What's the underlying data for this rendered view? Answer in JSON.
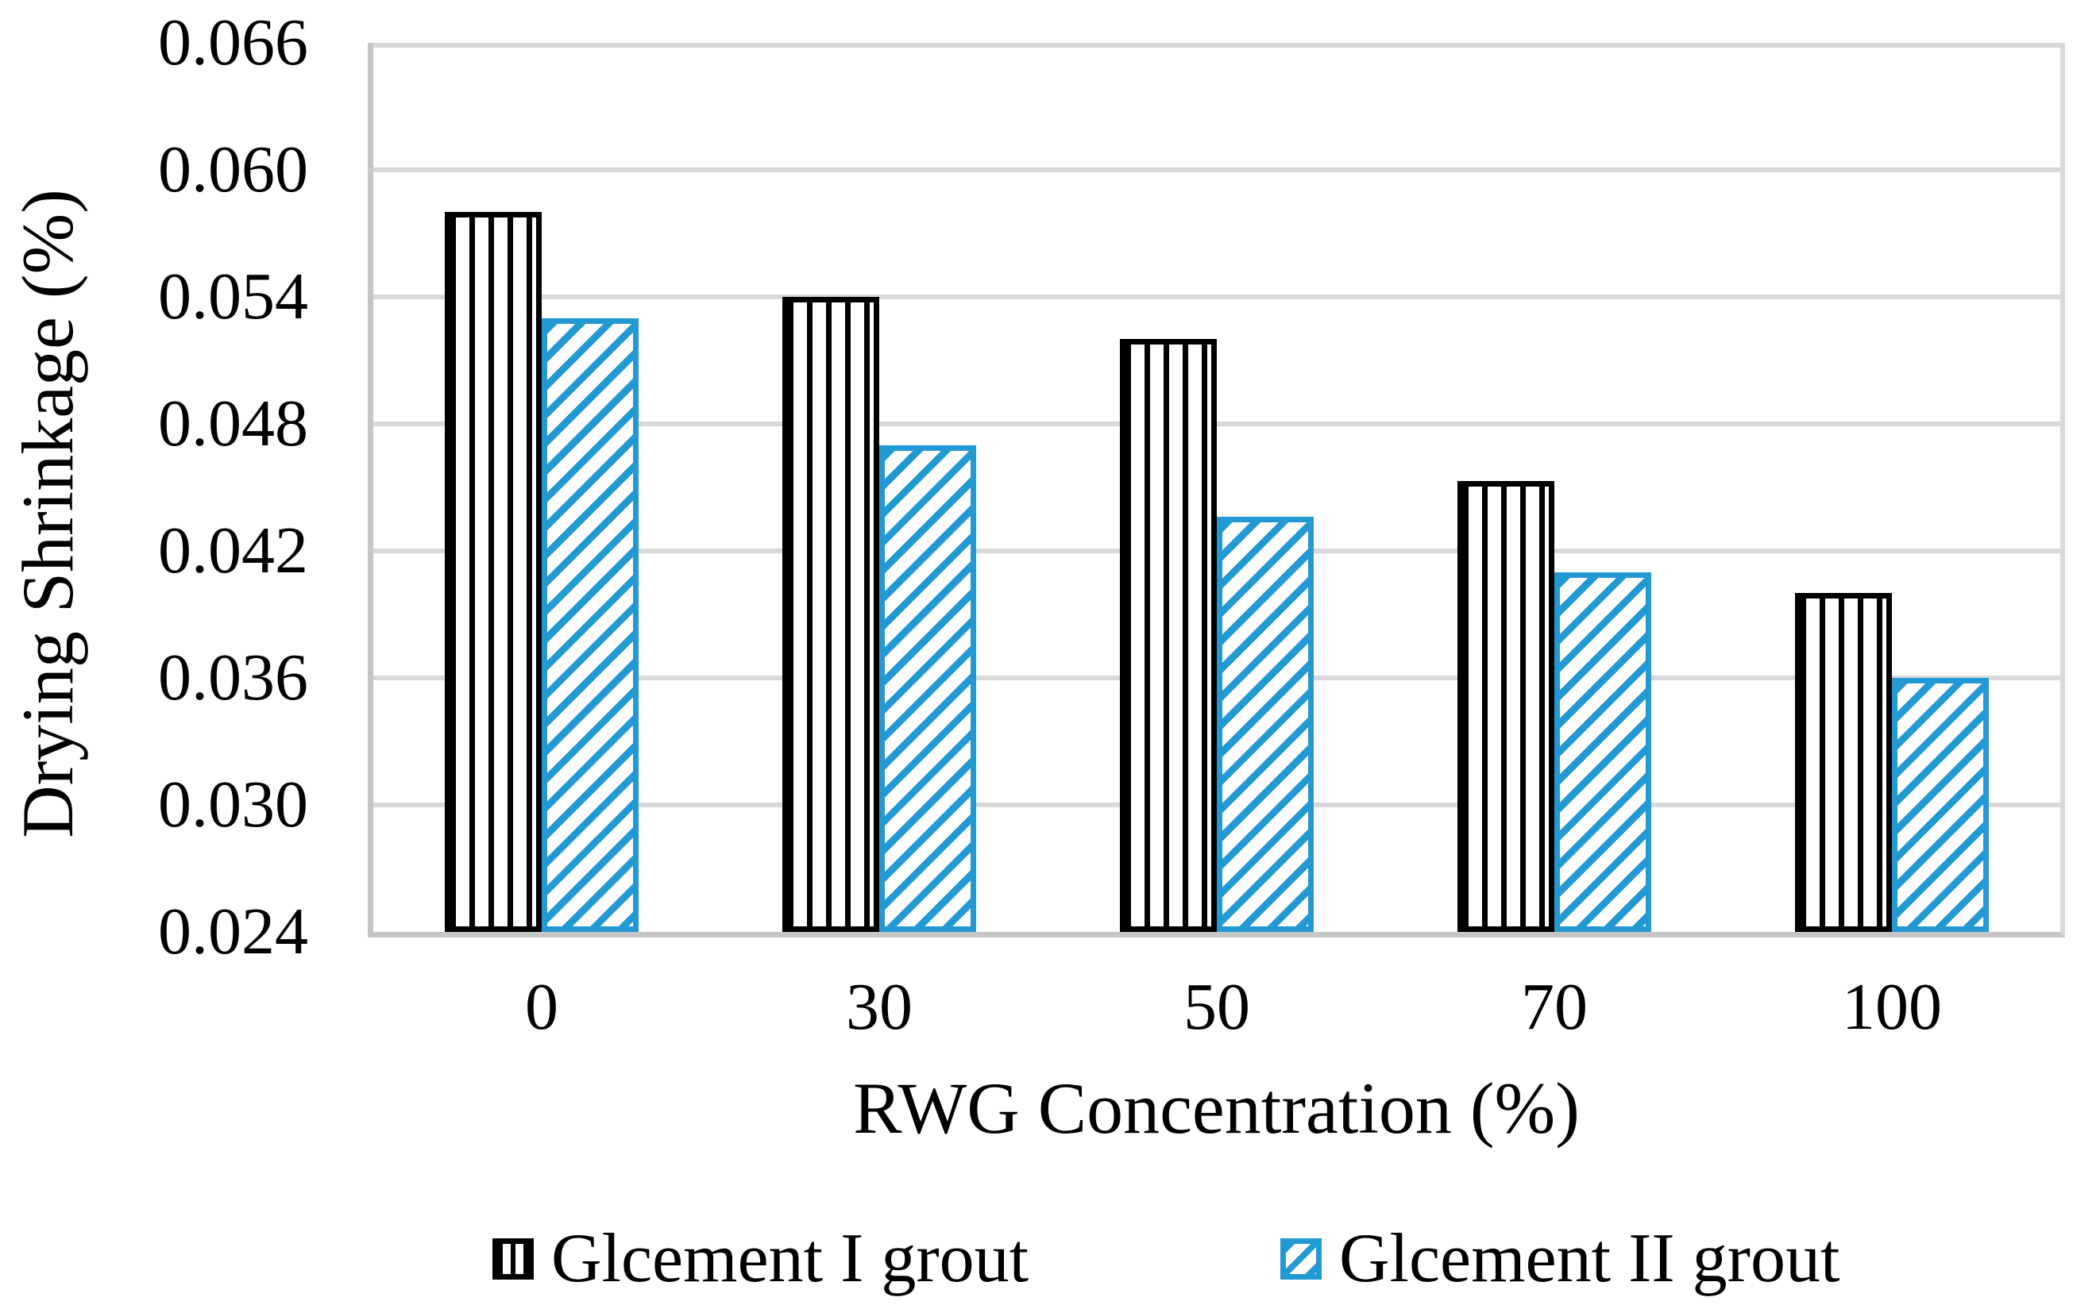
{
  "chart_data": {
    "type": "bar",
    "title": "",
    "categories": [
      "0",
      "30",
      "50",
      "70",
      "100"
    ],
    "series": [
      {
        "name": "Glcement I grout",
        "values": [
          0.058,
          0.054,
          0.052,
          0.0453,
          0.04
        ],
        "color": "#000000",
        "pattern": "vertical-stripes"
      },
      {
        "name": "Glcement II grout",
        "values": [
          0.053,
          0.047,
          0.0436,
          0.041,
          0.036
        ],
        "color": "#2399d4",
        "pattern": "diagonal-stripes"
      }
    ],
    "xlabel": "RWG Concentration (%)",
    "ylabel": "Drying Shrinkage (%)",
    "ylim": [
      0.024,
      0.066
    ],
    "ytick_step": 0.006,
    "ytick_labels": [
      "0.024",
      "0.030",
      "0.036",
      "0.042",
      "0.048",
      "0.054",
      "0.060",
      "0.066"
    ],
    "grid": "horizontal",
    "legend_position": "bottom",
    "colors": {
      "gridline": "#d9d9d9",
      "axis": "#c6c6c6",
      "background": "#ffffff"
    }
  }
}
